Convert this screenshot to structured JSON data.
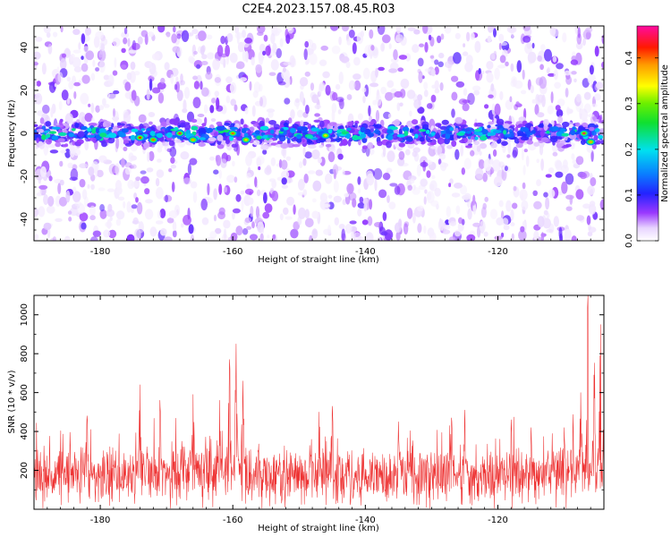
{
  "title": "C2E4.2023.157.08.45.R03",
  "chart_data": [
    {
      "type": "heatmap",
      "xlabel": "Height of straight line (km)",
      "ylabel": "Frequency (Hz)",
      "xlim": [
        -190,
        -104
      ],
      "ylim": [
        -50,
        50
      ],
      "x_ticks": [
        -180,
        -160,
        -140,
        -120
      ],
      "y_ticks": [
        -40,
        -20,
        0,
        20,
        40
      ],
      "description_of_field": "dense band of high spectral amplitude centred at 0 Hz spanning the full height range; scattered low-amplitude speckle elsewhere",
      "band_center_hz": 0,
      "band_halfwidth_hz": 5,
      "hotspots": [
        {
          "x": -174,
          "y": -2,
          "value": 0.42
        },
        {
          "x": -172,
          "y": -3,
          "value": 0.4
        },
        {
          "x": -168,
          "y": 0,
          "value": 0.45
        },
        {
          "x": -166,
          "y": -3,
          "value": 0.38
        },
        {
          "x": -160,
          "y": 0,
          "value": 0.4
        },
        {
          "x": -158,
          "y": -3,
          "value": 0.36
        },
        {
          "x": -146,
          "y": -1,
          "value": 0.35
        },
        {
          "x": -107,
          "y": 0,
          "value": 0.45
        },
        {
          "x": -106,
          "y": -4,
          "value": 0.38
        }
      ],
      "colorbar": {
        "label": "Normalized spectral amplitude",
        "range": [
          0.0,
          0.47
        ],
        "ticks": [
          "0.0",
          "0.1",
          "0.2",
          "0.3",
          "0.4"
        ],
        "colormap": "rainbow (white-violet-blue-cyan-green-yellow-red-magenta)"
      }
    },
    {
      "type": "line",
      "xlabel": "Height of straight line (km)",
      "ylabel": "SNR (10 * v/v)",
      "xlim": [
        -190,
        -104
      ],
      "ylim": [
        0,
        1100
      ],
      "x_ticks": [
        -180,
        -160,
        -140,
        -120
      ],
      "y_ticks": [
        200,
        400,
        600,
        800,
        1000
      ],
      "color": "#ee3333",
      "baseline_mean": 170,
      "noise_amplitude": 150,
      "peaks": [
        {
          "x": -182,
          "y": 480
        },
        {
          "x": -174,
          "y": 640
        },
        {
          "x": -171,
          "y": 560
        },
        {
          "x": -166,
          "y": 590
        },
        {
          "x": -162,
          "y": 560
        },
        {
          "x": -160.5,
          "y": 770
        },
        {
          "x": -159.5,
          "y": 850
        },
        {
          "x": -158.5,
          "y": 660
        },
        {
          "x": -147,
          "y": 500
        },
        {
          "x": -145,
          "y": 530
        },
        {
          "x": -135,
          "y": 450
        },
        {
          "x": -127,
          "y": 470
        },
        {
          "x": -125,
          "y": 510
        },
        {
          "x": -118,
          "y": 460
        },
        {
          "x": -115,
          "y": 420
        },
        {
          "x": -110,
          "y": 420
        },
        {
          "x": -107.5,
          "y": 600
        },
        {
          "x": -106.4,
          "y": 1100
        },
        {
          "x": -105.5,
          "y": 690
        },
        {
          "x": -104.5,
          "y": 950
        }
      ]
    }
  ]
}
